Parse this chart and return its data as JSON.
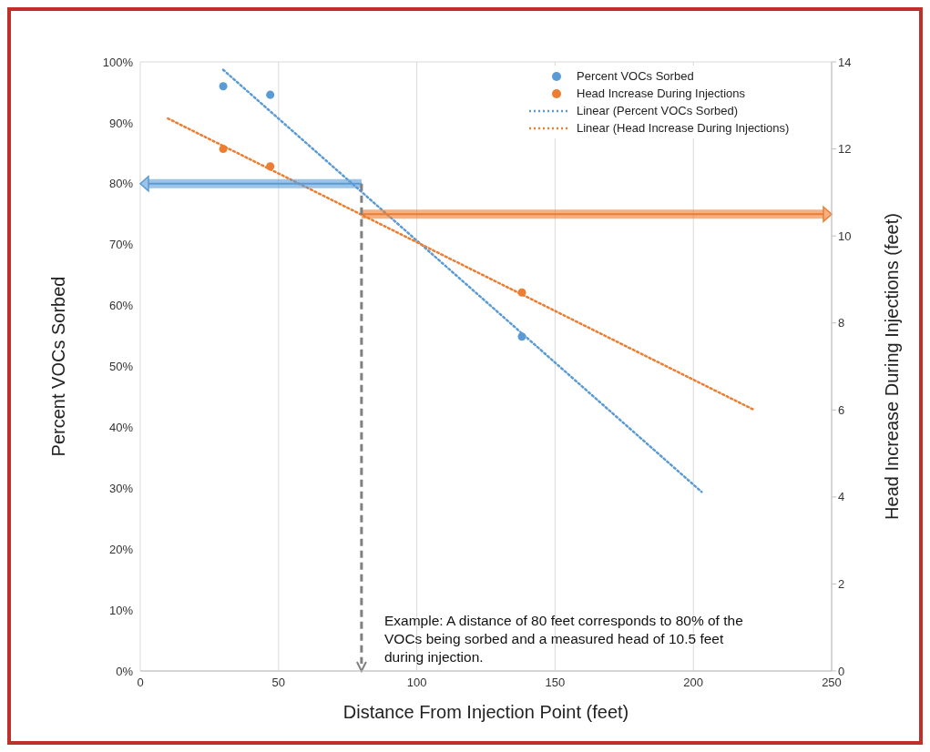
{
  "chart_data": {
    "type": "scatter",
    "xlabel": "Distance From Injection Point (feet)",
    "ylabel": "Percent VOCs Sorbed",
    "y2label": "Head Increase During Injections (feet)",
    "xlim": [
      0,
      250
    ],
    "xticks": [
      0,
      50,
      100,
      150,
      200,
      250
    ],
    "ylim": [
      0,
      100
    ],
    "yticks": [
      {
        "value": 0,
        "label": "0%"
      },
      {
        "value": 10,
        "label": "10%"
      },
      {
        "value": 20,
        "label": "20%"
      },
      {
        "value": 30,
        "label": "30%"
      },
      {
        "value": 40,
        "label": "40%"
      },
      {
        "value": 50,
        "label": "50%"
      },
      {
        "value": 60,
        "label": "60%"
      },
      {
        "value": 70,
        "label": "70%"
      },
      {
        "value": 80,
        "label": "80%"
      },
      {
        "value": 90,
        "label": "90%"
      },
      {
        "value": 100,
        "label": "100%"
      }
    ],
    "y2lim": [
      0,
      14
    ],
    "y2ticks": [
      0,
      2,
      4,
      6,
      8,
      10,
      12,
      14
    ],
    "grid": true,
    "legend": "top right",
    "marker": "circle",
    "series": [
      {
        "name": "Percent VOCs Sorbed",
        "type": "scatter",
        "color": "#5b9bd5",
        "x": [
          30,
          47,
          138
        ],
        "values": [
          96,
          94.6,
          54.9
        ]
      },
      {
        "name": "Head Increase During Injections",
        "type": "scatter",
        "axis": "y2",
        "color": "#ed7d31",
        "x": [
          30,
          47,
          138
        ],
        "values": [
          12.0,
          11.6,
          8.7
        ]
      },
      {
        "name": "Linear (Percent VOCs Sorbed)",
        "type": "line",
        "line_style": "dotted",
        "marker": "none",
        "color": "#5b9bd5",
        "x": [
          30,
          203
        ],
        "values": [
          98.7,
          29.4
        ]
      },
      {
        "name": "Linear (Head Increase During Injections)",
        "type": "line",
        "line_style": "dotted",
        "marker": "none",
        "axis": "y2",
        "color": "#ed7d31",
        "x": [
          10,
          222
        ],
        "values": [
          12.7,
          6.0
        ]
      }
    ],
    "ref_lines": [
      {
        "axis": "y",
        "value": 80,
        "color": "#5b9bd5"
      },
      {
        "axis": "y2",
        "value": 10.5,
        "color": "#ed7d31"
      },
      {
        "axis": "x",
        "value": 80,
        "color": "#808080",
        "line_style": "dashed"
      }
    ],
    "annotations": [
      "Example: A distance of 80 feet corresponds to 80% of the VOCs being sorbed and a measured head of 10.5 feet during injection."
    ]
  }
}
